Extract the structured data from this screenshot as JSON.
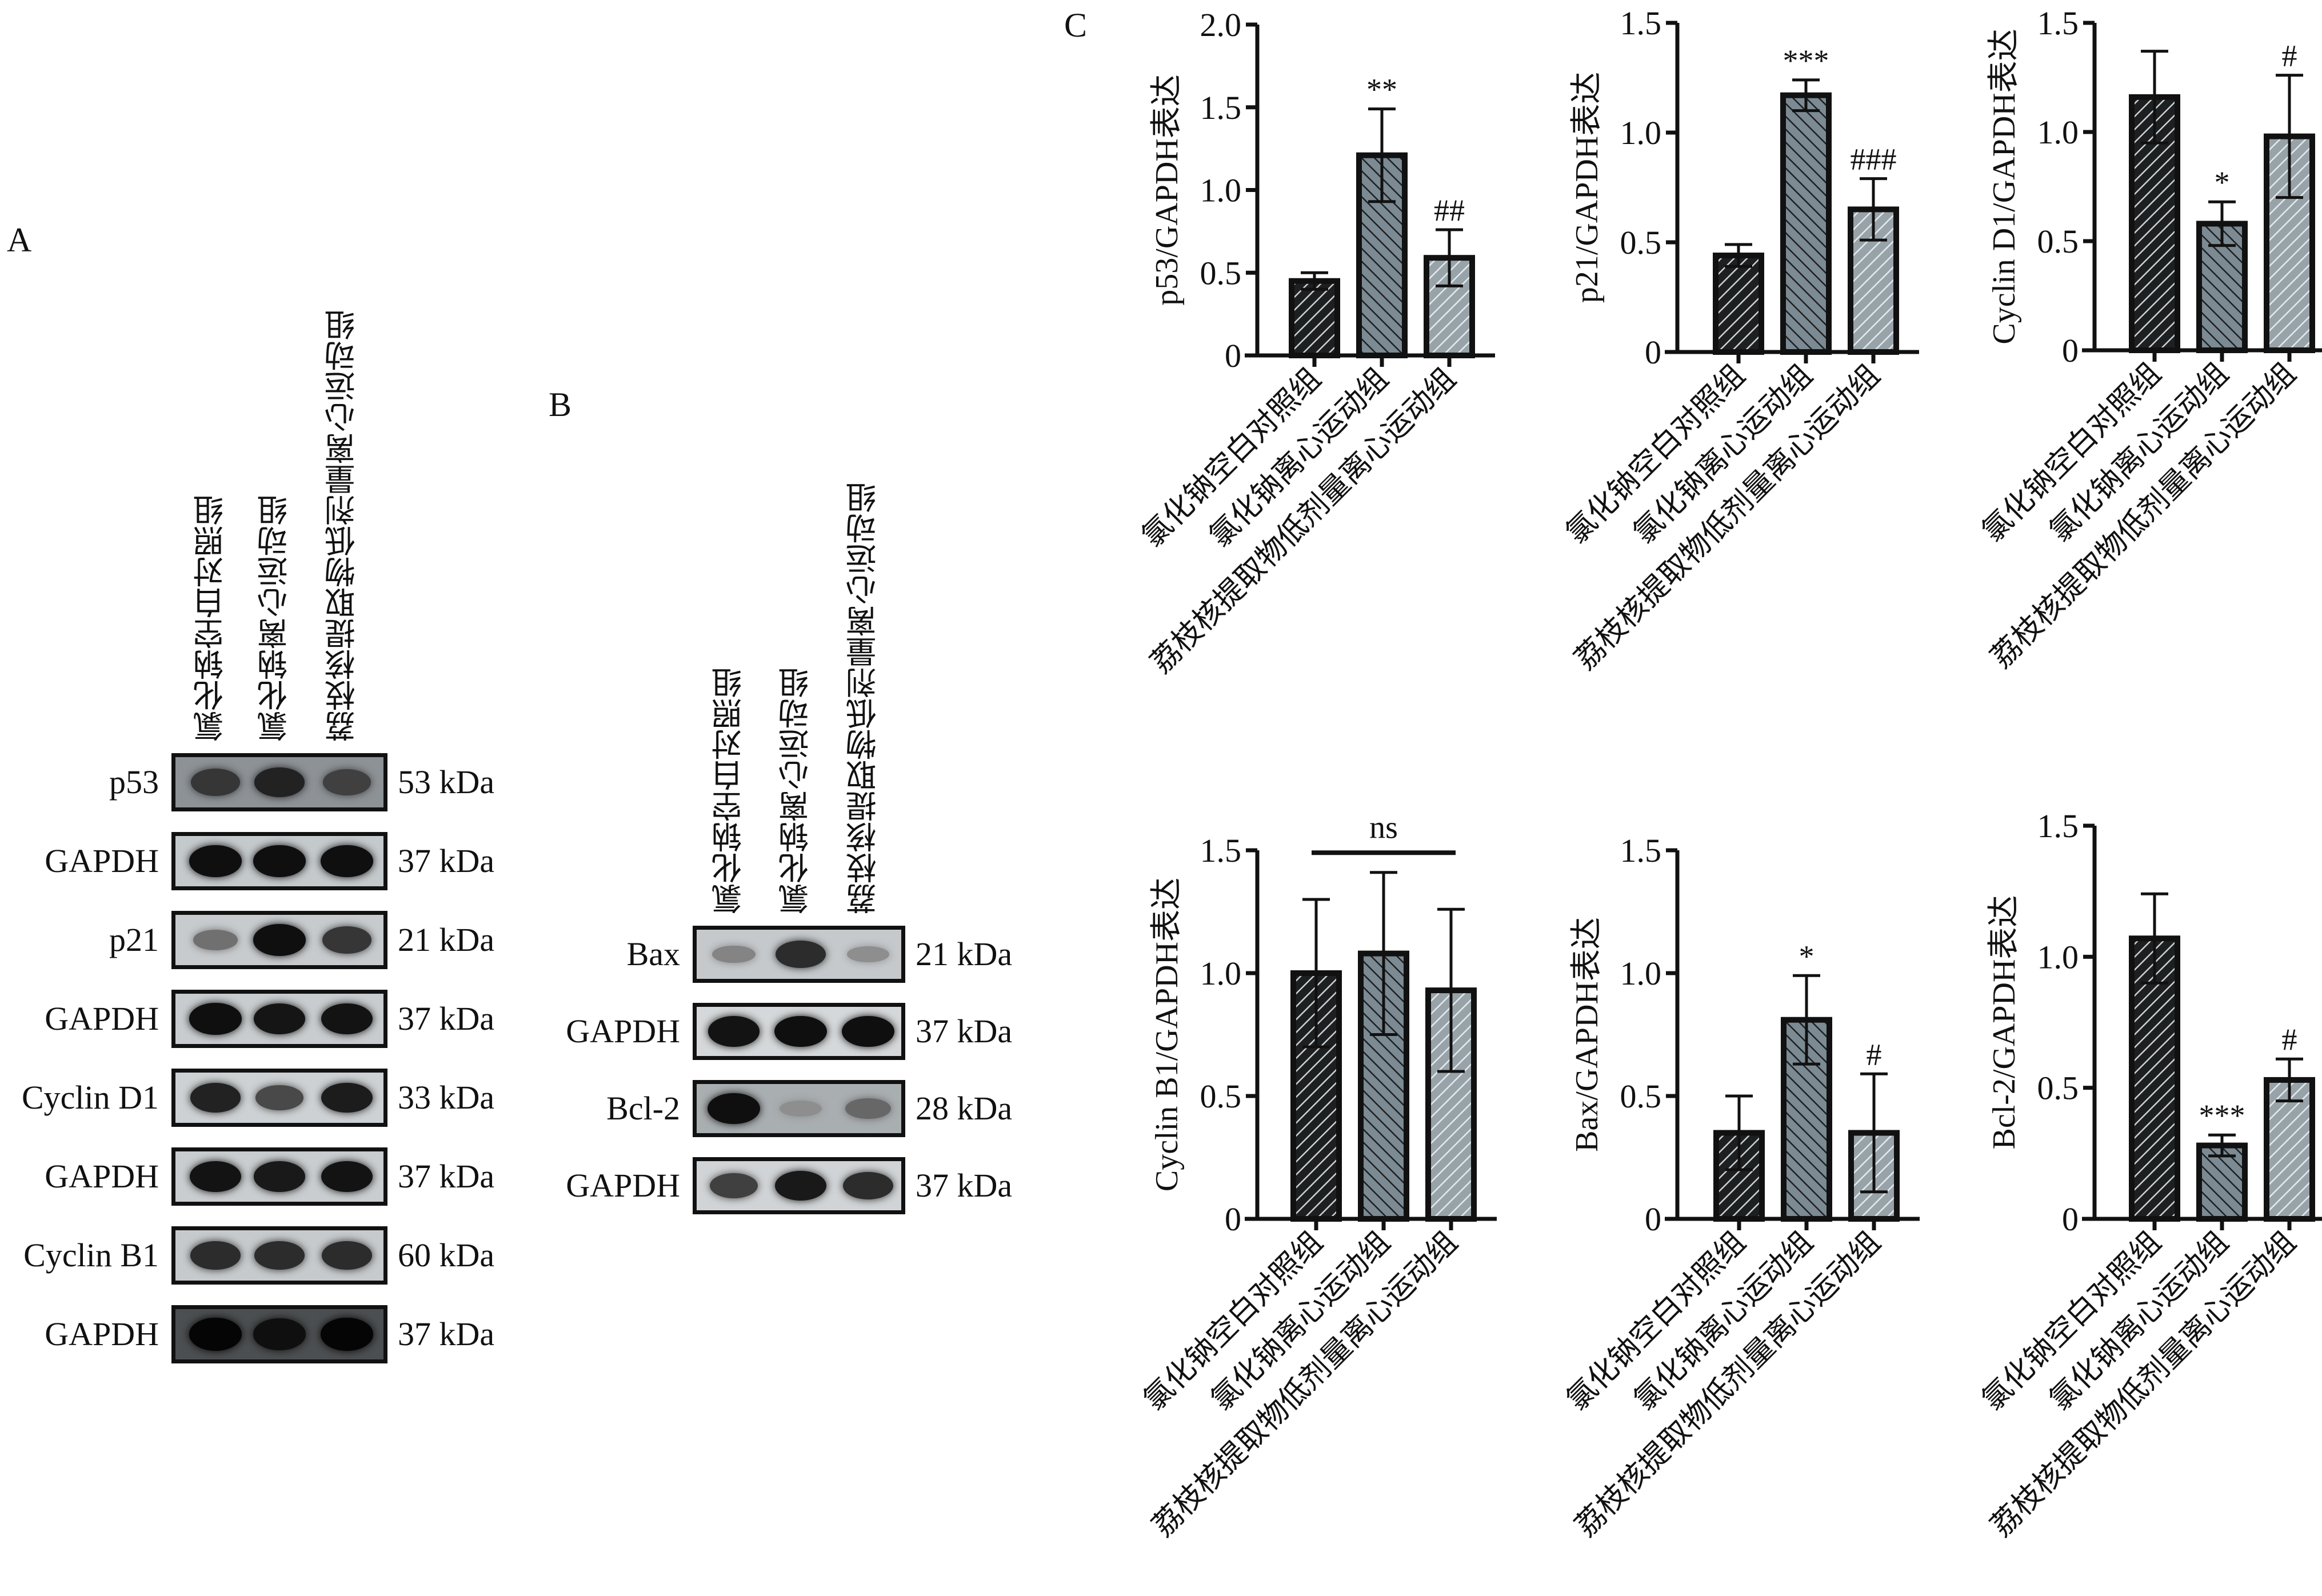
{
  "groups": [
    "氯化钠空白对照组",
    "氯化钠离心运动组",
    "荔枝核提取物低剂量离心运动组"
  ],
  "panel_a": {
    "letter": "A",
    "rows": [
      {
        "protein": "p53",
        "kda": "53 kDa",
        "intensity": [
          0.75,
          0.85,
          0.7
        ],
        "background": "#8d9296"
      },
      {
        "protein": "GAPDH",
        "kda": "37 kDa",
        "intensity": [
          0.95,
          0.95,
          0.95
        ],
        "background": "#c4c9cc"
      },
      {
        "protein": "p21",
        "kda": "21 kDa",
        "intensity": [
          0.45,
          0.95,
          0.75
        ],
        "background": "#c7cbce"
      },
      {
        "protein": "GAPDH",
        "kda": "37 kDa",
        "intensity": [
          0.95,
          0.92,
          0.93
        ],
        "background": "#c8ccce"
      },
      {
        "protein": "Cyclin D1",
        "kda": "33 kDa",
        "intensity": [
          0.85,
          0.65,
          0.88
        ],
        "background": "#cdd1d3"
      },
      {
        "protein": "GAPDH",
        "kda": "37 kDa",
        "intensity": [
          0.93,
          0.9,
          0.93
        ],
        "background": "#c9cdcf"
      },
      {
        "protein": "Cyclin B1",
        "kda": "60 kDa",
        "intensity": [
          0.8,
          0.8,
          0.8
        ],
        "background": "#c6cacc"
      },
      {
        "protein": "GAPDH",
        "kda": "37 kDa",
        "intensity": [
          1.0,
          0.95,
          1.0
        ],
        "background": "#4c4f51"
      }
    ]
  },
  "panel_b": {
    "letter": "B",
    "rows": [
      {
        "protein": "Bax",
        "kda": "21 kDa",
        "intensity": [
          0.35,
          0.8,
          0.3
        ],
        "background": "#c5c9cc"
      },
      {
        "protein": "GAPDH",
        "kda": "37 kDa",
        "intensity": [
          0.93,
          0.95,
          0.95
        ],
        "background": "#d5d8da"
      },
      {
        "protein": "Bcl-2",
        "kda": "28 kDa",
        "intensity": [
          0.95,
          0.3,
          0.5
        ],
        "background": "#a9aeb1"
      },
      {
        "protein": "GAPDH",
        "kda": "37 kDa",
        "intensity": [
          0.7,
          0.9,
          0.8
        ],
        "background": "#d1d4d6"
      }
    ]
  },
  "panel_c": {
    "letter": "C"
  },
  "bar_styles": {
    "fills": [
      "#1e1f20",
      "#7b8a93",
      "#98a3a9"
    ],
    "hatch": [
      "#c9d3d8",
      "#1e1f20",
      "#e4e9ec"
    ],
    "outline": "#111111"
  },
  "chart_data": [
    {
      "type": "bar",
      "ylabel": "p53/GAPDH表达",
      "ylim": [
        0,
        2.0
      ],
      "yticks": [
        "0",
        "0.5",
        "1.0",
        "1.5",
        "2.0"
      ],
      "ytick_values": [
        0,
        0.5,
        1.0,
        1.5,
        2.0
      ],
      "categories": [
        "氯化钠空白对照组",
        "氯化钠离心运动组",
        "荔枝核提取物低剂量离心运动组"
      ],
      "values": [
        0.45,
        1.21,
        0.59
      ],
      "errors": [
        0.05,
        0.28,
        0.17
      ],
      "annotations": [
        "",
        "**",
        "##"
      ],
      "bracket": null
    },
    {
      "type": "bar",
      "ylabel": "p21/GAPDH表达",
      "ylim": [
        0,
        1.5
      ],
      "yticks": [
        "0",
        "0.5",
        "1.0",
        "1.5"
      ],
      "ytick_values": [
        0,
        0.5,
        1.0,
        1.5
      ],
      "categories": [
        "氯化钠空白对照组",
        "氯化钠离心运动组",
        "荔枝核提取物低剂量离心运动组"
      ],
      "values": [
        0.44,
        1.17,
        0.65
      ],
      "errors": [
        0.05,
        0.07,
        0.14
      ],
      "annotations": [
        "",
        "***",
        "###"
      ],
      "bracket": null
    },
    {
      "type": "bar",
      "ylabel": "Cyclin D1/GAPDH表达",
      "ylim": [
        0,
        1.5
      ],
      "yticks": [
        "0",
        "0.5",
        "1.0",
        "1.5"
      ],
      "ytick_values": [
        0,
        0.5,
        1.0,
        1.5
      ],
      "categories": [
        "氯化钠空白对照组",
        "氯化钠离心运动组",
        "荔枝核提取物低剂量离心运动组"
      ],
      "values": [
        1.16,
        0.58,
        0.98
      ],
      "errors": [
        0.21,
        0.1,
        0.28
      ],
      "annotations": [
        "",
        "*",
        "#"
      ],
      "bracket": null
    },
    {
      "type": "bar",
      "ylabel": "Cyclin B1/GAPDH表达",
      "ylim": [
        0,
        1.5
      ],
      "yticks": [
        "0",
        "0.5",
        "1.0",
        "1.5"
      ],
      "ytick_values": [
        0,
        0.5,
        1.0,
        1.5
      ],
      "categories": [
        "氯化钠空白对照组",
        "氯化钠离心运动组",
        "荔枝核提取物低剂量离心运动组"
      ],
      "values": [
        1.0,
        1.08,
        0.93
      ],
      "errors": [
        0.3,
        0.33,
        0.33
      ],
      "annotations": [
        "",
        "",
        ""
      ],
      "bracket": {
        "label": "ns",
        "y": 1.49
      }
    },
    {
      "type": "bar",
      "ylabel": "Bax/GAPDH表达",
      "ylim": [
        0,
        1.5
      ],
      "yticks": [
        "0",
        "0.5",
        "1.0",
        "1.5"
      ],
      "ytick_values": [
        0,
        0.5,
        1.0,
        1.5
      ],
      "categories": [
        "氯化钠空白对照组",
        "氯化钠离心运动组",
        "荔枝核提取物低剂量离心运动组"
      ],
      "values": [
        0.35,
        0.81,
        0.35
      ],
      "errors": [
        0.15,
        0.18,
        0.24
      ],
      "annotations": [
        "",
        "*",
        "#"
      ],
      "bracket": null
    },
    {
      "type": "bar",
      "ylabel": "Bcl-2/GAPDH表达",
      "ylim": [
        0,
        1.5
      ],
      "yticks": [
        "0",
        "0.5",
        "1.0",
        "1.5"
      ],
      "ytick_values": [
        0,
        0.5,
        1.0,
        1.5
      ],
      "categories": [
        "氯化钠空白对照组",
        "氯化钠离心运动组",
        "荔枝核提取物低剂量离心运动组"
      ],
      "values": [
        1.07,
        0.28,
        0.53
      ],
      "errors": [
        0.17,
        0.04,
        0.08
      ],
      "annotations": [
        "",
        "***",
        "#"
      ],
      "bracket": null
    }
  ]
}
